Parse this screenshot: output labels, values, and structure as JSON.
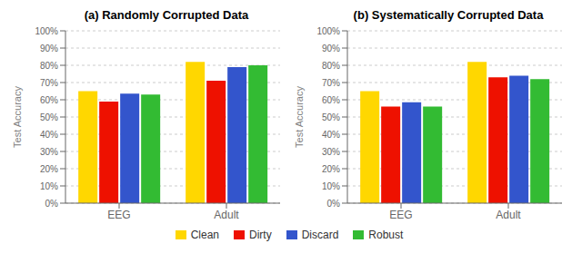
{
  "chart_data": [
    {
      "type": "bar",
      "title": "(a) Randomly Corrupted Data",
      "ylabel": "Test Accuracy",
      "categories": [
        "EEG",
        "Adult"
      ],
      "series": [
        {
          "name": "Clean",
          "color": "#FFD700",
          "values": [
            0.65,
            0.82
          ]
        },
        {
          "name": "Dirty",
          "color": "#EE1100",
          "values": [
            0.59,
            0.71
          ]
        },
        {
          "name": "Discard",
          "color": "#3355CC",
          "values": [
            0.635,
            0.79
          ]
        },
        {
          "name": "Robust",
          "color": "#33BB33",
          "values": [
            0.63,
            0.8
          ]
        }
      ],
      "ylim": [
        0,
        1.0
      ],
      "yticks": [
        {
          "value": 0.0,
          "label": "0%"
        },
        {
          "value": 0.1,
          "label": "10%"
        },
        {
          "value": 0.2,
          "label": "20%"
        },
        {
          "value": 0.3,
          "label": "30%"
        },
        {
          "value": 0.4,
          "label": "40%"
        },
        {
          "value": 0.5,
          "label": "50%"
        },
        {
          "value": 0.6,
          "label": "60%"
        },
        {
          "value": 0.7,
          "label": "70%"
        },
        {
          "value": 0.8,
          "label": "80%"
        },
        {
          "value": 0.9,
          "label": "90%"
        },
        {
          "value": 1.0,
          "label": "100%"
        }
      ],
      "grid": true,
      "legend": "bottom"
    },
    {
      "type": "bar",
      "title": "(b) Systematically Corrupted Data",
      "ylabel": "Test Accuracy",
      "categories": [
        "EEG",
        "Adult"
      ],
      "series": [
        {
          "name": "Clean",
          "color": "#FFD700",
          "values": [
            0.65,
            0.82
          ]
        },
        {
          "name": "Dirty",
          "color": "#EE1100",
          "values": [
            0.56,
            0.73
          ]
        },
        {
          "name": "Discard",
          "color": "#3355CC",
          "values": [
            0.585,
            0.74
          ]
        },
        {
          "name": "Robust",
          "color": "#33BB33",
          "values": [
            0.56,
            0.72
          ]
        }
      ],
      "ylim": [
        0,
        1.0
      ],
      "yticks": [
        {
          "value": 0.0,
          "label": "0%"
        },
        {
          "value": 0.1,
          "label": "10%"
        },
        {
          "value": 0.2,
          "label": "20%"
        },
        {
          "value": 0.3,
          "label": "30%"
        },
        {
          "value": 0.4,
          "label": "40%"
        },
        {
          "value": 0.5,
          "label": "50%"
        },
        {
          "value": 0.6,
          "label": "60%"
        },
        {
          "value": 0.7,
          "label": "70%"
        },
        {
          "value": 0.8,
          "label": "80%"
        },
        {
          "value": 0.9,
          "label": "90%"
        },
        {
          "value": 1.0,
          "label": "100%"
        }
      ],
      "grid": true,
      "legend": "bottom"
    }
  ]
}
